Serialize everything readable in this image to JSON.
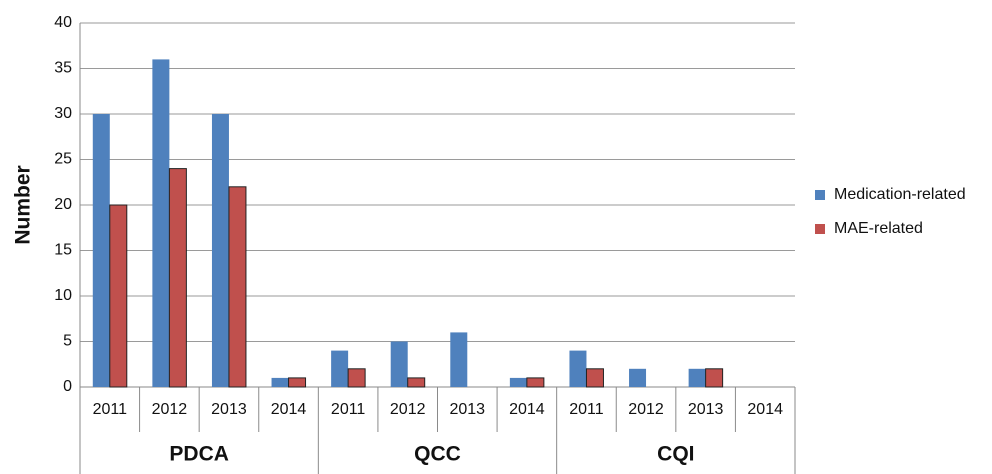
{
  "chart_data": {
    "type": "bar",
    "y_axis_title": "Number",
    "categories": [
      "2011",
      "2012",
      "2013",
      "2014",
      "2011",
      "2012",
      "2013",
      "2014",
      "2011",
      "2012",
      "2013",
      "2014"
    ],
    "category_groups": [
      "PDCA",
      "QCC",
      "CQI"
    ],
    "series": [
      {
        "name": "Medication-related",
        "color": "#4f81bd",
        "values": [
          30,
          36,
          30,
          1,
          4,
          5,
          6,
          1,
          4,
          2,
          2,
          0
        ]
      },
      {
        "name": "MAE-related",
        "color": "#c0504d",
        "values": [
          20,
          24,
          22,
          1,
          2,
          1,
          0,
          1,
          2,
          0,
          2,
          0
        ]
      }
    ],
    "ylim": [
      0,
      40
    ],
    "yticks": [
      0,
      5,
      10,
      15,
      20,
      25,
      30,
      35,
      40
    ],
    "grid": true,
    "legend": "right"
  }
}
